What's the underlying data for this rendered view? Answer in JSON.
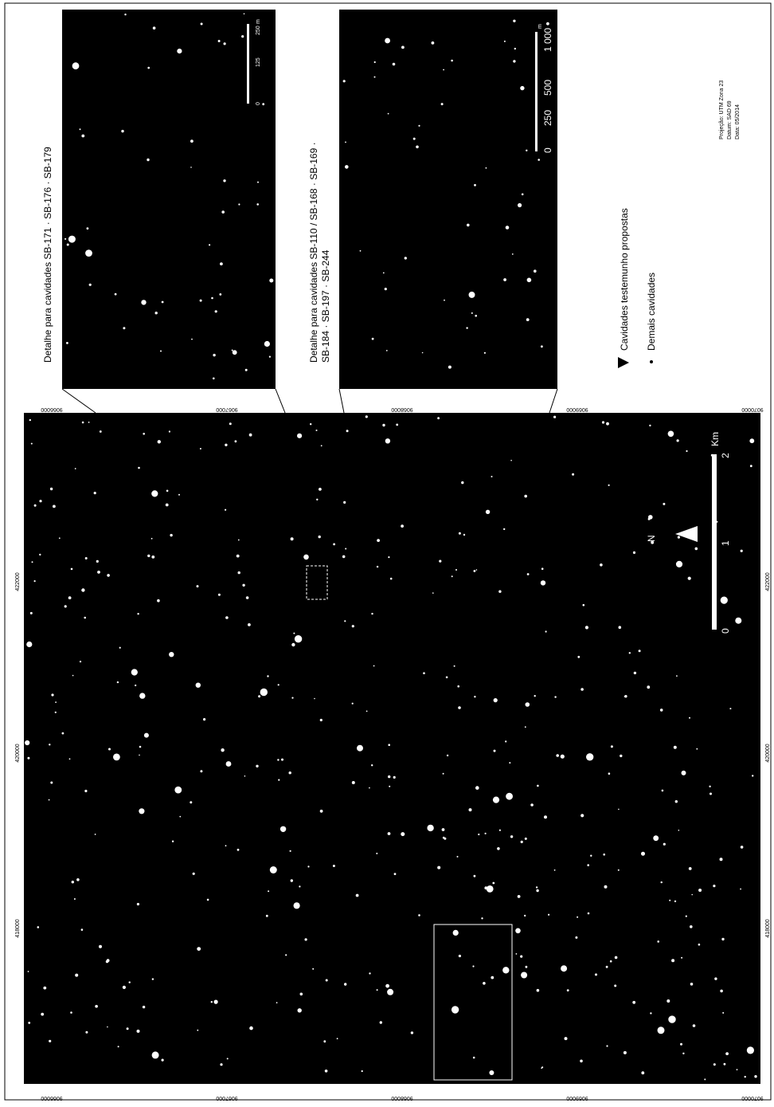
{
  "insets": [
    {
      "title": [
        "Detalhe para cavidades SB-171 · SB-176 · SB-179"
      ],
      "scale_labels": [
        "0",
        "125",
        "250"
      ],
      "scale_unit": "m"
    },
    {
      "title": [
        "Detalhe para cavidades SB-110 / SB-168 · SB-169 ·",
        "SB-184 · SB-197 · SB-244"
      ],
      "scale_labels": [
        "0",
        "250",
        "500",
        "1 000"
      ],
      "scale_unit": "m"
    }
  ],
  "legend": {
    "items": [
      "Cavidades testemunho propostas",
      "Demais cavidades"
    ]
  },
  "map": {
    "northing_labels": [
      "9066000",
      "9067000",
      "9068000",
      "9069000",
      "9070000"
    ],
    "easting_labels": [
      "422000",
      "420000",
      "418000"
    ],
    "north": "N",
    "scale_labels": [
      "0",
      "1",
      "2"
    ],
    "scale_unit": "Km"
  },
  "credits": [
    "Projeção: UTM Zona 23",
    "Datum: SAD 69",
    "Data: 05/2014"
  ]
}
